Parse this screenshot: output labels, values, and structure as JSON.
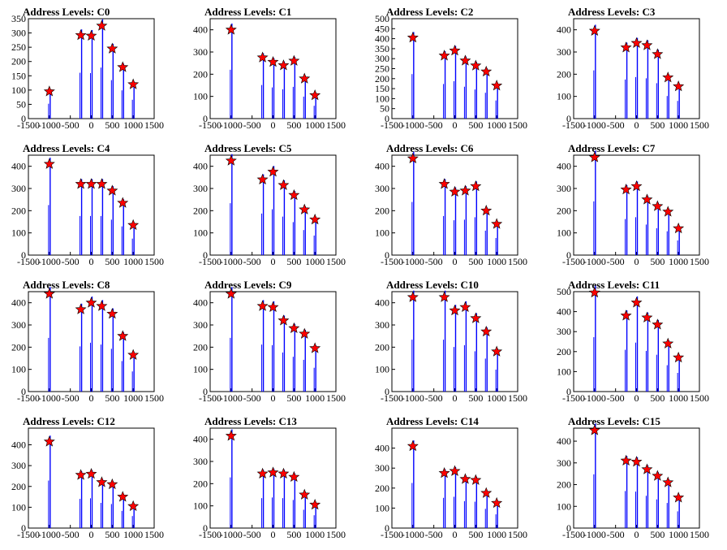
{
  "colors": {
    "bar": "#0000ff",
    "star": "#ff0000",
    "axis": "#000000"
  },
  "charts": [
    {
      "title": "Address Levels: C0",
      "ylim": [
        0,
        350
      ],
      "yticks": [
        0,
        50,
        100,
        150,
        200,
        250,
        300,
        350
      ],
      "xticks": [
        -1500,
        -1000,
        -500,
        0,
        500,
        1000,
        1500
      ],
      "chart_data": {
        "type": "bar",
        "xlim": [
          -1500,
          1500
        ],
        "ylim": [
          0,
          350
        ],
        "x": [
          -1000,
          -250,
          0,
          250,
          500,
          750,
          1000
        ],
        "values": [
          95,
          292,
          290,
          325,
          245,
          180,
          120
        ]
      }
    },
    {
      "title": "Address Levels: C1",
      "ylim": [
        0,
        450
      ],
      "yticks": [
        0,
        100,
        200,
        300,
        400
      ],
      "xticks": [
        -1500,
        -1000,
        -500,
        0,
        500,
        1000,
        1500
      ],
      "chart_data": {
        "type": "bar",
        "xlim": [
          -1500,
          1500
        ],
        "ylim": [
          0,
          450
        ],
        "x": [
          -1000,
          -250,
          0,
          250,
          500,
          750,
          1000
        ],
        "values": [
          400,
          275,
          255,
          240,
          260,
          180,
          105
        ]
      }
    },
    {
      "title": "Address Levels: C2",
      "ylim": [
        0,
        500
      ],
      "yticks": [
        0,
        50,
        100,
        150,
        200,
        250,
        300,
        350,
        400,
        450,
        500
      ],
      "xticks": [
        -1500,
        -1000,
        -500,
        0,
        500,
        1000,
        1500
      ],
      "chart_data": {
        "type": "bar",
        "xlim": [
          -1500,
          1500
        ],
        "ylim": [
          0,
          500
        ],
        "x": [
          -1000,
          -250,
          0,
          250,
          500,
          750,
          1000
        ],
        "values": [
          405,
          315,
          340,
          290,
          265,
          235,
          165
        ]
      }
    },
    {
      "title": "Address Levels: C3",
      "ylim": [
        0,
        450
      ],
      "yticks": [
        0,
        100,
        200,
        300,
        400
      ],
      "xticks": [
        -1500,
        -1000,
        -500,
        0,
        500,
        1000,
        1500
      ],
      "chart_data": {
        "type": "bar",
        "xlim": [
          -1500,
          1500
        ],
        "ylim": [
          0,
          450
        ],
        "x": [
          -1000,
          -250,
          0,
          250,
          500,
          750,
          1000
        ],
        "values": [
          395,
          320,
          340,
          330,
          290,
          185,
          145
        ]
      }
    },
    {
      "title": "Address Levels: C4",
      "ylim": [
        0,
        450
      ],
      "yticks": [
        0,
        100,
        200,
        300,
        400
      ],
      "xticks": [
        -1500,
        -1000,
        -500,
        0,
        500,
        1000,
        1500
      ],
      "chart_data": {
        "type": "bar",
        "xlim": [
          -1500,
          1500
        ],
        "ylim": [
          0,
          450
        ],
        "x": [
          -1000,
          -250,
          0,
          250,
          500,
          750,
          1000
        ],
        "values": [
          410,
          320,
          320,
          320,
          290,
          235,
          135
        ]
      }
    },
    {
      "title": "Address Levels: C5",
      "ylim": [
        0,
        450
      ],
      "yticks": [
        0,
        100,
        200,
        300,
        400
      ],
      "xticks": [
        -1500,
        -1000,
        -500,
        0,
        500,
        1000,
        1500
      ],
      "chart_data": {
        "type": "bar",
        "xlim": [
          -1500,
          1500
        ],
        "ylim": [
          0,
          450
        ],
        "x": [
          -1000,
          -250,
          0,
          250,
          500,
          750,
          1000
        ],
        "values": [
          425,
          340,
          375,
          315,
          270,
          205,
          160
        ]
      }
    },
    {
      "title": "Address Levels: C6",
      "ylim": [
        0,
        450
      ],
      "yticks": [
        0,
        100,
        200,
        300,
        400
      ],
      "xticks": [
        -1500,
        -1000,
        -500,
        0,
        500,
        1000,
        1500
      ],
      "chart_data": {
        "type": "bar",
        "xlim": [
          -1500,
          1500
        ],
        "ylim": [
          0,
          450
        ],
        "x": [
          -1000,
          -250,
          0,
          250,
          500,
          750,
          1000
        ],
        "values": [
          435,
          320,
          285,
          290,
          310,
          200,
          140
        ]
      }
    },
    {
      "title": "Address Levels: C7",
      "ylim": [
        0,
        450
      ],
      "yticks": [
        0,
        100,
        200,
        300,
        400
      ],
      "xticks": [
        -1500,
        -1000,
        -500,
        0,
        500,
        1000,
        1500
      ],
      "chart_data": {
        "type": "bar",
        "xlim": [
          -1500,
          1500
        ],
        "ylim": [
          0,
          450
        ],
        "x": [
          -1000,
          -250,
          0,
          250,
          500,
          750,
          1000
        ],
        "values": [
          440,
          295,
          310,
          250,
          220,
          195,
          120
        ]
      }
    },
    {
      "title": "Address Levels: C8",
      "ylim": [
        0,
        450
      ],
      "yticks": [
        0,
        100,
        200,
        300,
        400
      ],
      "xticks": [
        -1500,
        -1000,
        -500,
        0,
        500,
        1000,
        1500
      ],
      "chart_data": {
        "type": "bar",
        "xlim": [
          -1500,
          1500
        ],
        "ylim": [
          0,
          450
        ],
        "x": [
          -1000,
          -250,
          0,
          250,
          500,
          750,
          1000
        ],
        "values": [
          440,
          370,
          400,
          385,
          350,
          250,
          165
        ]
      }
    },
    {
      "title": "Address Levels: C9",
      "ylim": [
        0,
        450
      ],
      "yticks": [
        0,
        100,
        200,
        300,
        400
      ],
      "xticks": [
        -1500,
        -1000,
        -500,
        0,
        500,
        1000,
        1500
      ],
      "chart_data": {
        "type": "bar",
        "xlim": [
          -1500,
          1500
        ],
        "ylim": [
          0,
          450
        ],
        "x": [
          -1000,
          -250,
          0,
          250,
          500,
          750,
          1000
        ],
        "values": [
          440,
          385,
          380,
          320,
          285,
          260,
          195
        ]
      }
    },
    {
      "title": "Address Levels: C10",
      "ylim": [
        0,
        450
      ],
      "yticks": [
        0,
        100,
        200,
        300,
        400
      ],
      "xticks": [
        -1500,
        -1000,
        -500,
        0,
        500,
        1000,
        1500
      ],
      "chart_data": {
        "type": "bar",
        "xlim": [
          -1500,
          1500
        ],
        "ylim": [
          0,
          450
        ],
        "x": [
          -1000,
          -250,
          0,
          250,
          500,
          750,
          1000
        ],
        "values": [
          425,
          425,
          365,
          380,
          330,
          270,
          180
        ]
      }
    },
    {
      "title": "Address Levels: C11",
      "ylim": [
        0,
        500
      ],
      "yticks": [
        0,
        100,
        200,
        300,
        400,
        500
      ],
      "xticks": [
        -1500,
        -1000,
        -500,
        0,
        500,
        1000,
        1500
      ],
      "chart_data": {
        "type": "bar",
        "xlim": [
          -1500,
          1500
        ],
        "ylim": [
          0,
          500
        ],
        "x": [
          -1000,
          -250,
          0,
          250,
          500,
          750,
          1000
        ],
        "values": [
          495,
          380,
          445,
          370,
          335,
          240,
          170
        ]
      }
    },
    {
      "title": "Address Levels: C12",
      "ylim": [
        0,
        480
      ],
      "yticks": [
        0,
        100,
        200,
        300,
        400
      ],
      "xticks": [
        -1500,
        -1000,
        -500,
        0,
        500,
        1000,
        1500
      ],
      "chart_data": {
        "type": "bar",
        "xlim": [
          -1500,
          1500
        ],
        "ylim": [
          0,
          480
        ],
        "x": [
          -1000,
          -250,
          0,
          250,
          500,
          750,
          1000
        ],
        "values": [
          415,
          255,
          260,
          220,
          210,
          150,
          105
        ]
      }
    },
    {
      "title": "Address Levels: C13",
      "ylim": [
        0,
        450
      ],
      "yticks": [
        0,
        100,
        200,
        300,
        400
      ],
      "xticks": [
        -1500,
        -1000,
        -500,
        0,
        500,
        1000,
        1500
      ],
      "chart_data": {
        "type": "bar",
        "xlim": [
          -1500,
          1500
        ],
        "ylim": [
          0,
          450
        ],
        "x": [
          -1000,
          -250,
          0,
          250,
          500,
          750,
          1000
        ],
        "values": [
          415,
          245,
          250,
          245,
          230,
          150,
          105
        ]
      }
    },
    {
      "title": "Address Levels: C14",
      "ylim": [
        0,
        500
      ],
      "yticks": [
        0,
        100,
        200,
        300,
        400
      ],
      "xticks": [
        -1500,
        -1000,
        -500,
        0,
        500,
        1000,
        1500
      ],
      "chart_data": {
        "type": "bar",
        "xlim": [
          -1500,
          1500
        ],
        "ylim": [
          0,
          500
        ],
        "x": [
          -1000,
          -250,
          0,
          250,
          500,
          750,
          1000
        ],
        "values": [
          410,
          275,
          285,
          245,
          240,
          175,
          125
        ]
      }
    },
    {
      "title": "Address Levels: C15",
      "ylim": [
        0,
        460
      ],
      "yticks": [
        0,
        100,
        200,
        300,
        400
      ],
      "xticks": [
        -1500,
        -1000,
        -500,
        0,
        500,
        1000,
        1500
      ],
      "chart_data": {
        "type": "bar",
        "xlim": [
          -1500,
          1500
        ],
        "ylim": [
          0,
          460
        ],
        "x": [
          -1000,
          -250,
          0,
          250,
          500,
          750,
          1000
        ],
        "values": [
          450,
          310,
          305,
          270,
          240,
          210,
          140
        ]
      }
    }
  ]
}
